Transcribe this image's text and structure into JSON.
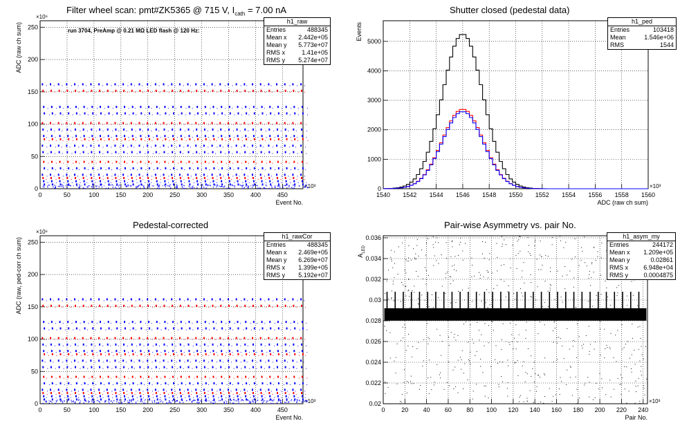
{
  "chart_data": [
    {
      "type": "scatter",
      "title": "Filter wheel scan: pmt#ZK5365 @   715 V, I",
      "title_sub": "cath",
      "title_tail": " = 7.00 nA",
      "annotation": "run 3704, PreAmp @ 0.21 MΩ LED flash @  120 Hz:",
      "xlabel": "Event No.",
      "ylabel": "ADC (raw ch sum)",
      "x_exponent": "×10³",
      "y_exponent": "×10⁶",
      "xlim": [
        0,
        488
      ],
      "ylim": [
        0,
        260
      ],
      "xticks": [
        0,
        50,
        100,
        150,
        200,
        250,
        300,
        350,
        400,
        450
      ],
      "yticks": [
        0,
        50,
        100,
        150,
        200,
        250
      ],
      "grid": true,
      "x_step_period": 15,
      "step_levels": [
        160,
        150,
        125,
        115,
        100,
        90,
        80,
        75,
        65,
        55,
        40,
        30,
        20,
        15,
        10,
        5
      ],
      "stats": {
        "name": "h1_raw",
        "rows": [
          {
            "label": "Entries",
            "value": "488345"
          },
          {
            "label": "Mean x",
            "value": "2.442e+05"
          },
          {
            "label": "Mean y",
            "value": "5.773e+07"
          },
          {
            "label": "RMS x",
            "value": "1.41e+05"
          },
          {
            "label": "RMS y",
            "value": "5.274e+07"
          }
        ]
      },
      "colors": {
        "primary": "#0000ff",
        "secondary": "#ff0000"
      }
    },
    {
      "type": "histogram",
      "title": "Shutter closed (pedestal data)",
      "xlabel": "ADC (raw ch sum)",
      "ylabel": "Events",
      "x_exponent": "×10³",
      "xlim": [
        1540,
        1560
      ],
      "ylim": [
        0,
        5700
      ],
      "xticks": [
        1540,
        1542,
        1544,
        1546,
        1548,
        1550,
        1552,
        1554,
        1556,
        1558,
        1560
      ],
      "yticks": [
        0,
        1000,
        2000,
        3000,
        4000,
        5000
      ],
      "grid": true,
      "gaussians": [
        {
          "color": "#000000",
          "mean": 1546.0,
          "sigma": 1.544,
          "peak": 5250
        },
        {
          "color": "#ff0000",
          "mean": 1546.0,
          "sigma": 1.55,
          "peak": 2700
        },
        {
          "color": "#0000ff",
          "mean": 1546.0,
          "sigma": 1.55,
          "peak": 2620
        }
      ],
      "stats": {
        "name": "h1_ped",
        "rows": [
          {
            "label": "Entries",
            "value": "103418"
          },
          {
            "label": "Mean",
            "value": "1.546e+06"
          },
          {
            "label": "RMS",
            "value": "1544"
          }
        ]
      }
    },
    {
      "type": "scatter",
      "title": "Pedestal-corrected",
      "xlabel": "Event No.",
      "ylabel": "ADC (raw, ped-corr ch sum)",
      "x_exponent": "×10³",
      "y_exponent": "×10⁶",
      "xlim": [
        0,
        488
      ],
      "ylim": [
        0,
        260
      ],
      "xticks": [
        0,
        50,
        100,
        150,
        200,
        250,
        300,
        350,
        400,
        450
      ],
      "yticks": [
        0,
        50,
        100,
        150,
        200,
        250
      ],
      "grid": true,
      "x_step_period": 15,
      "step_levels": [
        160,
        150,
        125,
        115,
        100,
        90,
        80,
        75,
        65,
        55,
        40,
        30,
        20,
        15,
        10,
        5
      ],
      "stats": {
        "name": "h1_rawCor",
        "rows": [
          {
            "label": "Entries",
            "value": "488345"
          },
          {
            "label": "Mean x",
            "value": "2.469e+05"
          },
          {
            "label": "Mean y",
            "value": "6.269e+07"
          },
          {
            "label": "RMS x",
            "value": "1.399e+05"
          },
          {
            "label": "RMS y",
            "value": "5.192e+07"
          }
        ]
      },
      "colors": {
        "primary": "#0000ff",
        "secondary": "#ff0000"
      }
    },
    {
      "type": "scatter",
      "title": "Pair-wise Asymmetry vs. pair No.",
      "xlabel": "Pair No.",
      "ylabel": "A",
      "ylabel_sub": "LED",
      "x_exponent": "×10³",
      "xlim": [
        0,
        244
      ],
      "ylim": [
        0.02,
        0.0362
      ],
      "xticks": [
        0,
        20,
        40,
        60,
        80,
        100,
        120,
        140,
        160,
        180,
        200,
        220,
        240
      ],
      "yticks": [
        0.02,
        0.022,
        0.024,
        0.026,
        0.028,
        0.03,
        0.032,
        0.034,
        0.036
      ],
      "grid": true,
      "band_center": 0.02861,
      "band_halfwidth": 0.0006,
      "spike_period": 7.5,
      "spike_top": 0.0308,
      "stats": {
        "name": "h1_asym_my",
        "rows": [
          {
            "label": "Entries",
            "value": "244172"
          },
          {
            "label": "Mean x",
            "value": "1.209e+05"
          },
          {
            "label": "Mean y",
            "value": "0.02861"
          },
          {
            "label": "RMS x",
            "value": "6.948e+04"
          },
          {
            "label": "RMS y",
            "value": "0.0004875"
          }
        ]
      },
      "colors": {
        "primary": "#000000"
      }
    }
  ]
}
